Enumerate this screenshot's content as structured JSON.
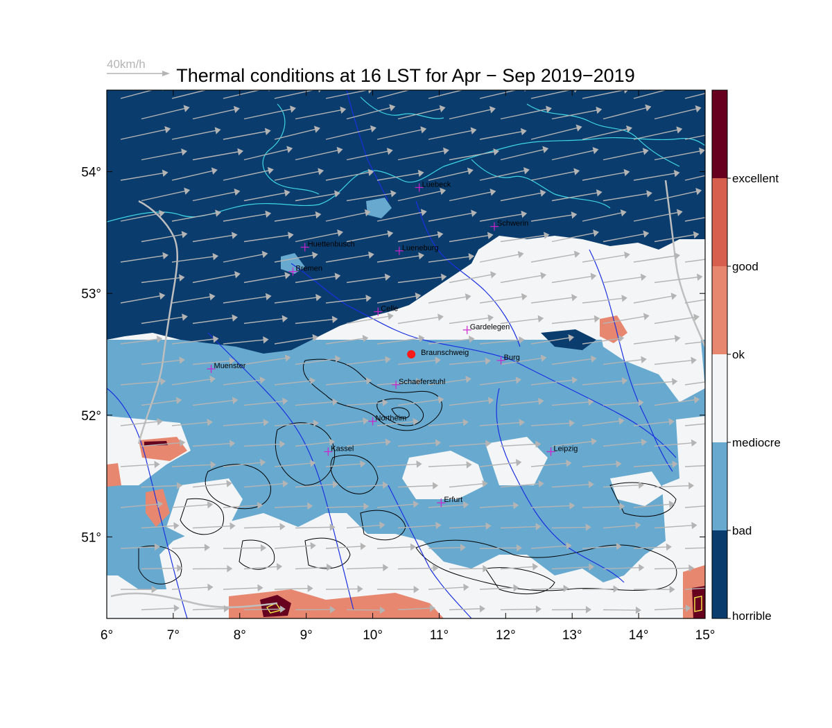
{
  "title": "Thermal conditions at 16 LST for Apr − Sep  2019−2019",
  "wind_scale": {
    "label": "40km/h",
    "color": "#b4b4b4"
  },
  "colors": {
    "horrible": "#0a3d6e",
    "bad": "#67a9cf",
    "mediocre": "#f4f5f7",
    "ok": "#e8876f",
    "good": "#d6604d",
    "excellent": "#67001f",
    "rivers": "#1a2fe0",
    "coast": "#3ed7e6",
    "roads": "#bfbfbf",
    "contours": "#000000",
    "city_marker": "#cc22cc",
    "highlight_point": "#ff1a1a"
  },
  "chart_data": {
    "type": "heatmap",
    "title": "Thermal conditions at 16 LST for Apr − Sep  2019−2019",
    "x_range": [
      6,
      15
    ],
    "y_range": [
      50.33,
      54.67
    ],
    "x_ticks": [
      "6°",
      "7°",
      "8°",
      "9°",
      "10°",
      "11°",
      "12°",
      "13°",
      "14°",
      "15°"
    ],
    "y_ticks": [
      "51°",
      "52°",
      "53°",
      "54°"
    ],
    "x_tick_values": [
      6,
      7,
      8,
      9,
      10,
      11,
      12,
      13,
      14,
      15
    ],
    "y_tick_values": [
      51,
      52,
      53,
      54
    ],
    "colorbar": {
      "categories": [
        "horrible",
        "bad",
        "mediocre",
        "ok",
        "good",
        "excellent"
      ],
      "labels": [
        "horrible",
        "bad",
        "mediocre",
        "ok",
        "good",
        "excellent"
      ]
    },
    "regions": [
      {
        "category": "horrible",
        "area": "north (above ~52.7° in the west, ~53.4° in the east)"
      },
      {
        "category": "bad",
        "area": "central band between ~51.3° and ~53°"
      },
      {
        "category": "mediocre",
        "area": "south-west and south-east highlands"
      },
      {
        "category": "ok",
        "area": "scattered patches in the south and near 51.75°N 6.7°E"
      },
      {
        "category": "excellent",
        "area": "small spots near 50.4°N 8.4°E and 50.4°N 15°E"
      }
    ],
    "cities": [
      {
        "name": "Luebeck",
        "lon": 10.7,
        "lat": 53.87
      },
      {
        "name": "Schwerin",
        "lon": 11.83,
        "lat": 53.55
      },
      {
        "name": "Huettenbusch",
        "lon": 8.98,
        "lat": 53.38
      },
      {
        "name": "Lueneburg",
        "lon": 10.4,
        "lat": 53.35
      },
      {
        "name": "Bremen",
        "lon": 8.8,
        "lat": 53.18
      },
      {
        "name": "Celle",
        "lon": 10.08,
        "lat": 52.85
      },
      {
        "name": "Gardelegen",
        "lon": 11.42,
        "lat": 52.7
      },
      {
        "name": "Braunschweig",
        "lon": 10.58,
        "lat": 52.5
      },
      {
        "name": "Burg",
        "lon": 11.93,
        "lat": 52.45
      },
      {
        "name": "Muenster",
        "lon": 7.57,
        "lat": 52.38
      },
      {
        "name": "Schaeferstuhl",
        "lon": 10.35,
        "lat": 52.25
      },
      {
        "name": "Northeim",
        "lon": 10.0,
        "lat": 51.95
      },
      {
        "name": "Kassel",
        "lon": 9.33,
        "lat": 51.7
      },
      {
        "name": "Leipzig",
        "lon": 12.68,
        "lat": 51.7
      },
      {
        "name": "Erfurt",
        "lon": 11.03,
        "lat": 51.28
      }
    ],
    "highlight_point": {
      "name": "Braunschweig",
      "lon": 10.58,
      "lat": 52.5
    }
  }
}
